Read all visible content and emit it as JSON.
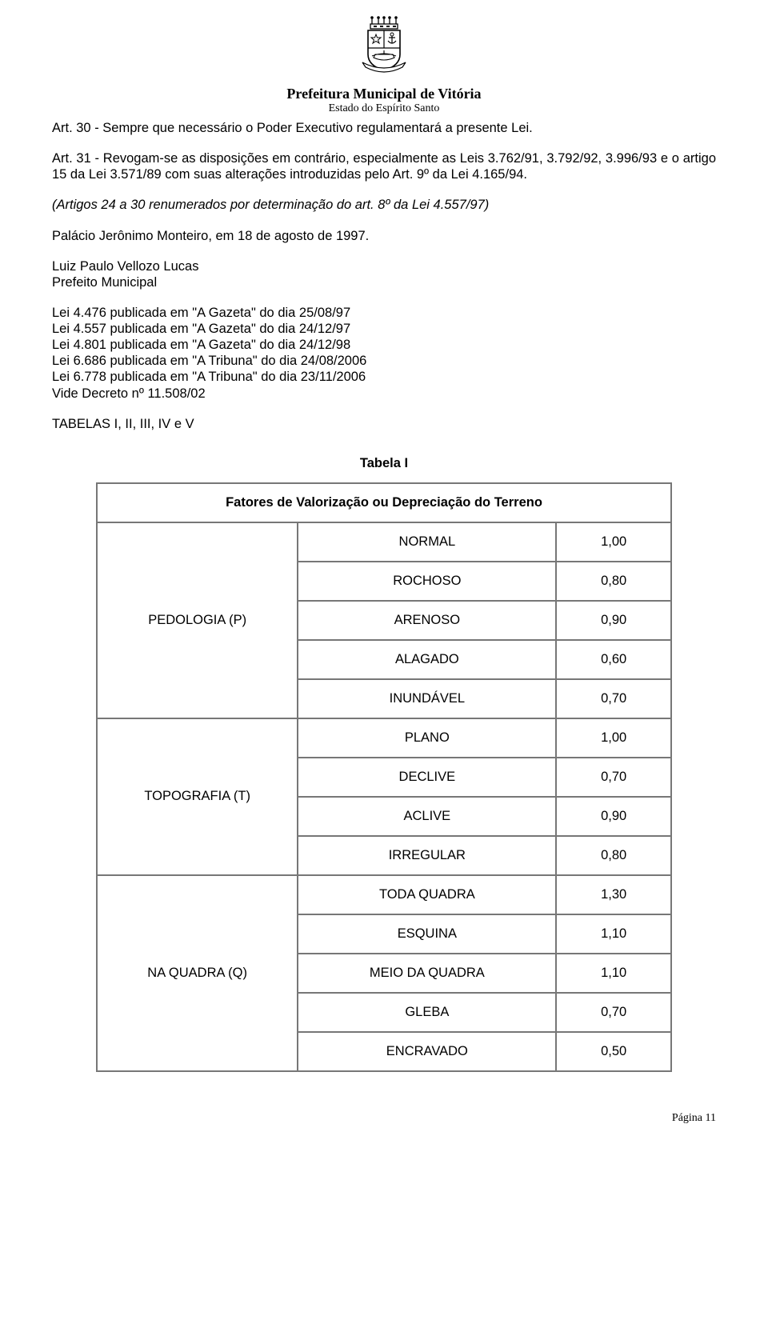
{
  "header": {
    "org1": "Prefeitura Municipal de Vitória",
    "org2": "Estado do Espírito Santo"
  },
  "paragraphs": {
    "art30": "Art. 30 - Sempre que necessário o Poder Executivo regulamentará a presente Lei.",
    "art31": "Art. 31 - Revogam-se as disposições em contrário, especialmente as Leis 3.762/91, 3.792/92, 3.996/93 e o artigo 15 da Lei 3.571/89 com suas alterações introduzidas pelo Art. 9º da Lei 4.165/94.",
    "renum": "(Artigos 24 a 30 renumerados por determinação do art. 8º da Lei 4.557/97)",
    "palacio": "Palácio Jerônimo Monteiro, em 18 de agosto de 1997.",
    "sig1": "Luiz Paulo Vellozo Lucas",
    "sig2": "Prefeito Municipal",
    "pub1": "Lei 4.476 publicada em \"A Gazeta\" do dia 25/08/97",
    "pub2": "Lei 4.557 publicada em \"A Gazeta\" do dia 24/12/97",
    "pub3": "Lei 4.801 publicada em \"A Gazeta\" do dia 24/12/98",
    "pub4": "Lei 6.686 publicada em \"A Tribuna\" do dia 24/08/2006",
    "pub5": "Lei 6.778 publicada em \"A Tribuna\" do dia 23/11/2006",
    "vide": "Vide Decreto nº 11.508/02",
    "tabelas": "TABELAS I, II, III, IV e V"
  },
  "table": {
    "title": "Tabela I",
    "header": "Fatores de Valorização ou Depreciação do Terreno",
    "groups": [
      {
        "label": "PEDOLOGIA (P)",
        "rows": [
          {
            "name": "NORMAL",
            "value": "1,00"
          },
          {
            "name": "ROCHOSO",
            "value": "0,80"
          },
          {
            "name": "ARENOSO",
            "value": "0,90"
          },
          {
            "name": "ALAGADO",
            "value": "0,60"
          },
          {
            "name": "INUNDÁVEL",
            "value": "0,70"
          }
        ]
      },
      {
        "label": "TOPOGRAFIA (T)",
        "rows": [
          {
            "name": "PLANO",
            "value": "1,00"
          },
          {
            "name": "DECLIVE",
            "value": "0,70"
          },
          {
            "name": "ACLIVE",
            "value": "0,90"
          },
          {
            "name": "IRREGULAR",
            "value": "0,80"
          }
        ]
      },
      {
        "label": "NA QUADRA (Q)",
        "rows": [
          {
            "name": "TODA QUADRA",
            "value": "1,30"
          },
          {
            "name": "ESQUINA",
            "value": "1,10"
          },
          {
            "name": "MEIO DA QUADRA",
            "value": "1,10"
          },
          {
            "name": "GLEBA",
            "value": "0,70"
          },
          {
            "name": "ENCRAVADO",
            "value": "0,50"
          }
        ]
      }
    ]
  },
  "footer": "Página 11"
}
